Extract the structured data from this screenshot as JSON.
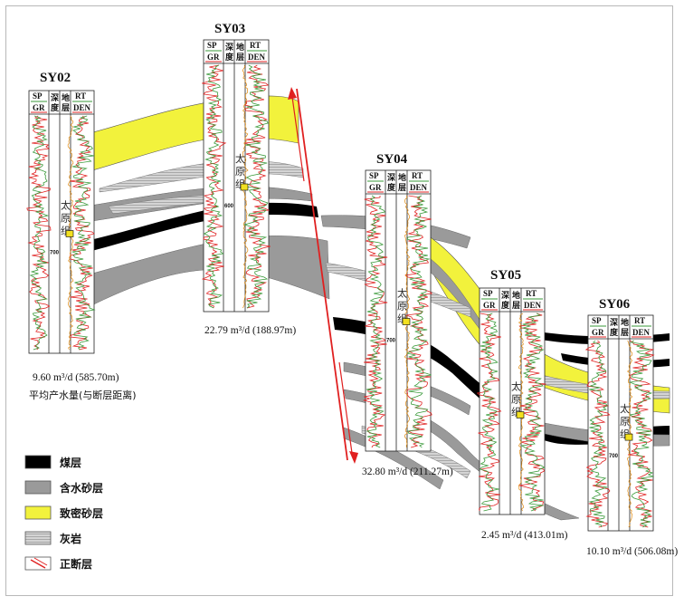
{
  "wells": [
    {
      "id": "SY02",
      "caption": "9.60 m³/d (585.70m)",
      "formation": "太原组",
      "depth_mark": "700"
    },
    {
      "id": "SY03",
      "caption": "22.79 m³/d (188.97m)",
      "formation": "太原组",
      "depth_mark": "600"
    },
    {
      "id": "SY04",
      "caption": "32.80 m³/d (211.27m)",
      "formation": "太原组",
      "depth_mark": "700"
    },
    {
      "id": "SY05",
      "caption": "2.45 m³/d (413.01m)",
      "formation": "太原组",
      "depth_mark": ""
    },
    {
      "id": "SY06",
      "caption": "10.10 m³/d (506.08m)",
      "formation": "太原组",
      "depth_mark": "700"
    }
  ],
  "caption_note": "平均产水量(与断层距离)",
  "track_headers": {
    "sp": "SP",
    "gr": "GR",
    "depth": "深度",
    "strata": "地层",
    "rt": "RT",
    "den": "DEN"
  },
  "legend": [
    {
      "label": "煤层",
      "color": "#000000"
    },
    {
      "label": "含水砂层",
      "color": "#9a9a9a"
    },
    {
      "label": "致密砂层",
      "color": "#f2f23c"
    },
    {
      "label": "灰岩",
      "color": "#cfcfcf"
    },
    {
      "label": "正断层",
      "color": "#e02020"
    }
  ]
}
